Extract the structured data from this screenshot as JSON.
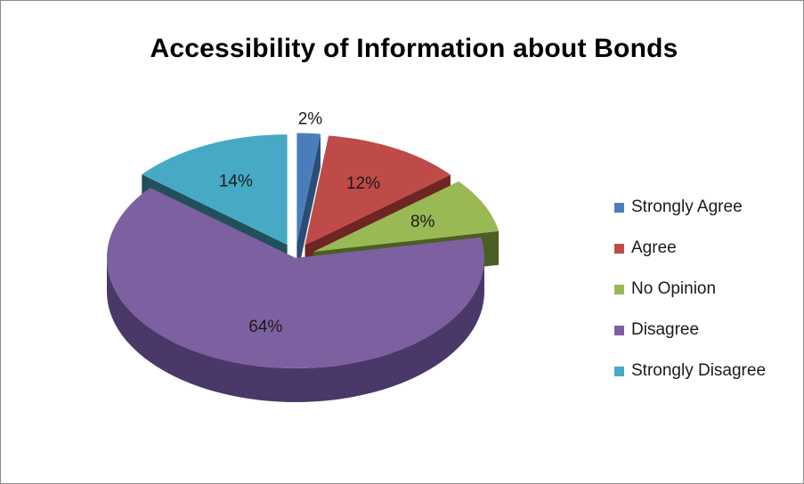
{
  "chart_data": {
    "type": "pie",
    "title": "Accessibility of Information about Bonds",
    "three_d": true,
    "exploded": true,
    "legend_position": "right",
    "categories": [
      "Strongly Agree",
      "Agree",
      "No Opinion",
      "Disagree",
      "Strongly Disagree"
    ],
    "values": [
      2,
      12,
      8,
      64,
      14
    ],
    "labels": [
      "2%",
      "12%",
      "8%",
      "64%",
      "14%"
    ],
    "colors": [
      "#4a7ebb",
      "#be4b48",
      "#98b954",
      "#7d60a0",
      "#46aac5"
    ],
    "side_colors": [
      "#2a4d78",
      "#6e2523",
      "#4c5e23",
      "#4a3868",
      "#214f5c"
    ]
  }
}
